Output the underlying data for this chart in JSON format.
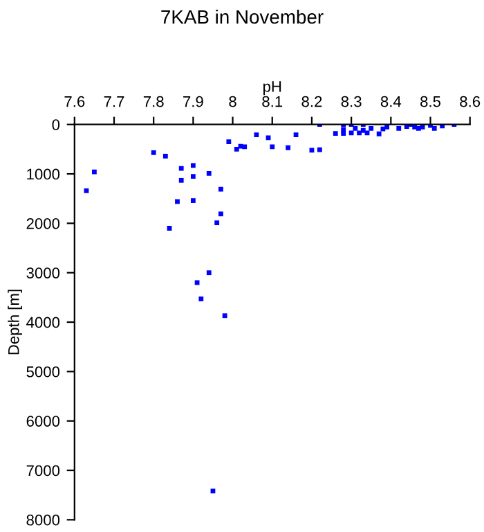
{
  "chart_data": {
    "type": "scatter",
    "title": "7KAB in November",
    "xlabel": "pH",
    "ylabel": "Depth [m]",
    "x": [
      7.65,
      7.63,
      7.8,
      7.83,
      7.87,
      7.87,
      7.9,
      7.9,
      7.94,
      7.86,
      7.9,
      7.97,
      7.97,
      7.96,
      7.84,
      7.99,
      8.01,
      8.02,
      8.03,
      8.06,
      8.09,
      8.1,
      8.14,
      8.16,
      8.2,
      8.22,
      8.22,
      8.26,
      8.28,
      8.28,
      8.3,
      8.31,
      8.32,
      8.33,
      8.33,
      8.34,
      8.35,
      8.37,
      8.38,
      8.39,
      8.42,
      8.44,
      8.45,
      8.46,
      8.47,
      8.48,
      8.5,
      8.51,
      8.53,
      8.56,
      8.3,
      8.28,
      7.94,
      7.91,
      7.92,
      7.98,
      7.95
    ],
    "values": [
      960,
      1340,
      570,
      640,
      890,
      1130,
      830,
      1050,
      990,
      1560,
      1540,
      1310,
      1810,
      1990,
      2100,
      350,
      500,
      440,
      450,
      210,
      270,
      450,
      470,
      210,
      520,
      510,
      0,
      180,
      100,
      180,
      170,
      80,
      170,
      0,
      120,
      170,
      80,
      190,
      90,
      50,
      80,
      40,
      0,
      50,
      80,
      50,
      20,
      80,
      30,
      0,
      0,
      0,
      3000,
      3200,
      3530,
      3870,
      7420
    ],
    "color": "#0000ff",
    "marker": "square",
    "xlim": [
      7.6,
      8.6
    ],
    "ylim": [
      8000,
      0
    ],
    "xticks": [
      7.6,
      7.7,
      7.8,
      7.9,
      8,
      8.1,
      8.2,
      8.3,
      8.4,
      8.5,
      8.6
    ],
    "yticks": [
      0,
      1000,
      2000,
      3000,
      4000,
      5000,
      6000,
      7000,
      8000
    ],
    "grid": false
  }
}
